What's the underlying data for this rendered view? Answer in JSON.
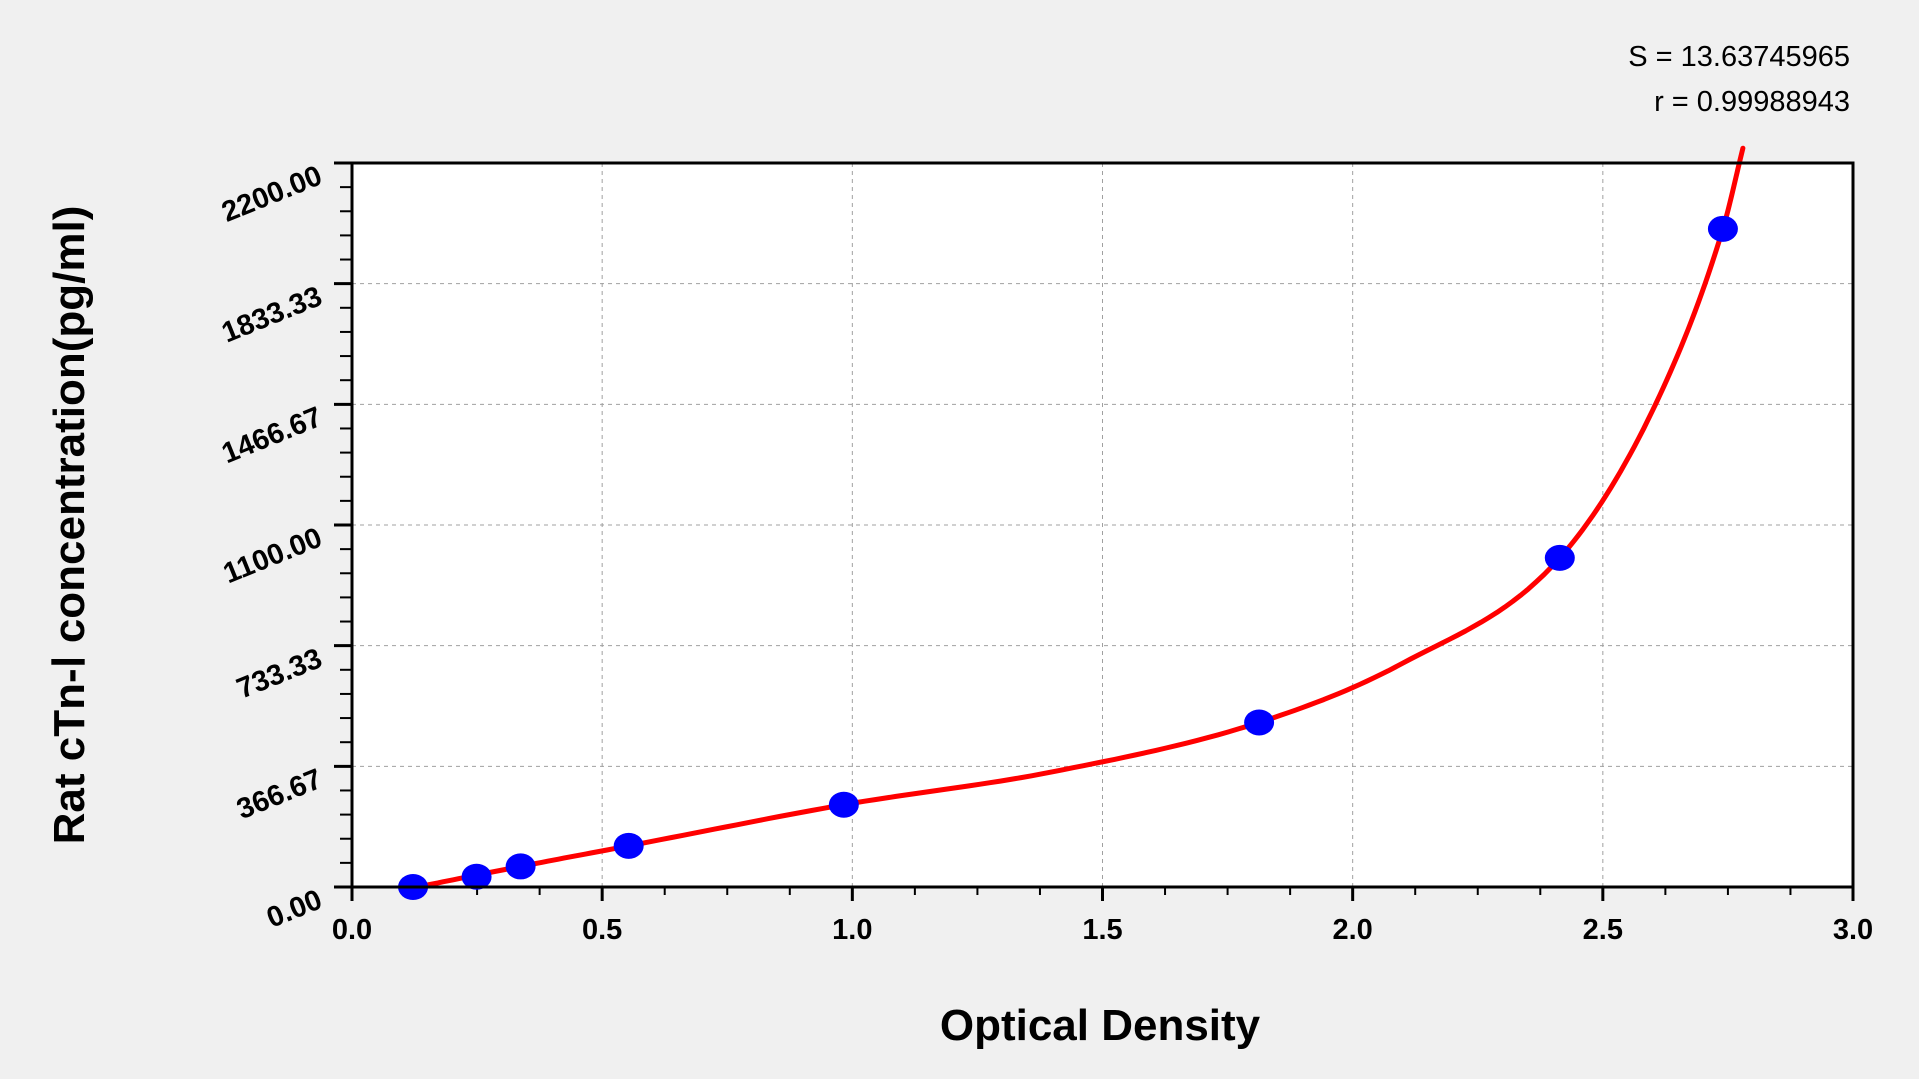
{
  "chart_data": {
    "type": "scatter",
    "title": "",
    "xlabel": "Optical Density",
    "ylabel": "Rat cTn-Ⅰ concentration(pg/ml)",
    "xlim": [
      0,
      3.0
    ],
    "ylim": [
      0,
      2200
    ],
    "x_ticks": [
      "0.0",
      "0.5",
      "1.0",
      "1.5",
      "2.0",
      "2.5",
      "3.0"
    ],
    "y_ticks": [
      "0.00",
      "366.67",
      "733.33",
      "1100.00",
      "1466.67",
      "1833.33",
      "2200.00"
    ],
    "grid": true,
    "points": {
      "x": [
        0.122,
        0.249,
        0.337,
        0.553,
        0.983,
        1.813,
        2.414,
        2.74
      ],
      "y": [
        0,
        31.25,
        62.5,
        125,
        250,
        500,
        1000,
        2000
      ],
      "color": "#0000ff"
    },
    "fit_curve": {
      "color": "#ff0000",
      "x": [
        0.13,
        0.337,
        0.553,
        0.983,
        1.4,
        1.813,
        2.1,
        2.414,
        2.6,
        2.74,
        2.78
      ],
      "y": [
        0,
        62.5,
        125,
        250,
        350,
        500,
        680,
        1000,
        1450,
        2000,
        2245
      ]
    },
    "annotations": {
      "s_value": "S = 13.63745965",
      "r_value": "r = 0.99988943"
    }
  }
}
